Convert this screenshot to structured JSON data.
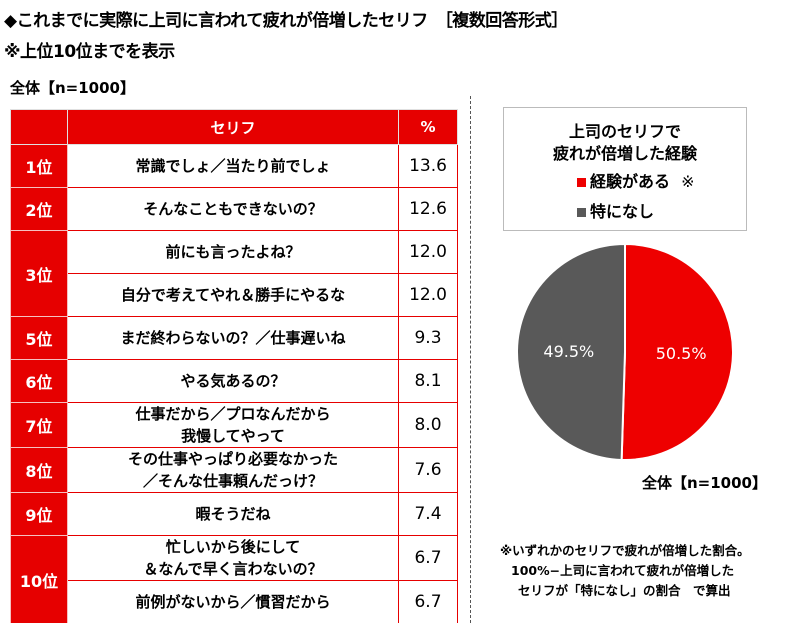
{
  "title": "◆これまでに実際に上司に言われて疲れが倍増したセリフ　［複数回答形式］",
  "subtitle": "※上位10位までを表示",
  "sample_left": "全体【n=1000】",
  "table": {
    "headers": [
      "",
      "セリフ",
      "%"
    ],
    "rows": [
      {
        "rank": "1位",
        "items": [
          {
            "phrase": "常識でしょ／当たり前でしょ",
            "pct": "13.6"
          }
        ]
      },
      {
        "rank": "2位",
        "items": [
          {
            "phrase": "そんなこともできないの？",
            "pct": "12.6"
          }
        ]
      },
      {
        "rank": "3位",
        "items": [
          {
            "phrase": "前にも言ったよね？",
            "pct": "12.0"
          },
          {
            "phrase": "自分で考えてやれ＆勝手にやるな",
            "pct": "12.0"
          }
        ]
      },
      {
        "rank": "5位",
        "items": [
          {
            "phrase": "まだ終わらないの？／仕事遅いね",
            "pct": "9.3"
          }
        ]
      },
      {
        "rank": "6位",
        "items": [
          {
            "phrase": "やる気あるの？",
            "pct": "8.1"
          }
        ]
      },
      {
        "rank": "7位",
        "items": [
          {
            "phrase": "仕事だから／プロなんだから\n我慢してやって",
            "pct": "8.0"
          }
        ]
      },
      {
        "rank": "8位",
        "items": [
          {
            "phrase": "その仕事やっぱり必要なかった\n／そんな仕事頼んだっけ？",
            "pct": "7.6"
          }
        ]
      },
      {
        "rank": "9位",
        "items": [
          {
            "phrase": "暇そうだね",
            "pct": "7.4"
          }
        ]
      },
      {
        "rank": "10位",
        "items": [
          {
            "phrase": "忙しいから後にして\n＆なんで早く言わないの？",
            "pct": "6.7"
          },
          {
            "phrase": "前例がないから／慣習だから",
            "pct": "6.7"
          }
        ]
      }
    ]
  },
  "legend": {
    "title_line1": "上司のセリフで",
    "title_line2": "疲れが倍増した経験",
    "items": [
      {
        "label": "経験がある",
        "mark": "※"
      },
      {
        "label": "特になし",
        "mark": ""
      }
    ]
  },
  "sample_right": "全体【n=1000】",
  "note": {
    "line1": "※いずれかのセリフで疲れが倍増した割合。",
    "line2": "100%−上司に言われて疲れが倍増した",
    "line3": "セリフが「特になし」の割合　で算出"
  },
  "chart_data": {
    "type": "pie",
    "title": "上司のセリフで疲れが倍増した経験",
    "slices": [
      {
        "name": "経験がある",
        "value": 50.5,
        "label": "50.5%",
        "color": "#ee0000"
      },
      {
        "name": "特になし",
        "value": 49.5,
        "label": "49.5%",
        "color": "#595959"
      }
    ],
    "legend_position": "top"
  }
}
